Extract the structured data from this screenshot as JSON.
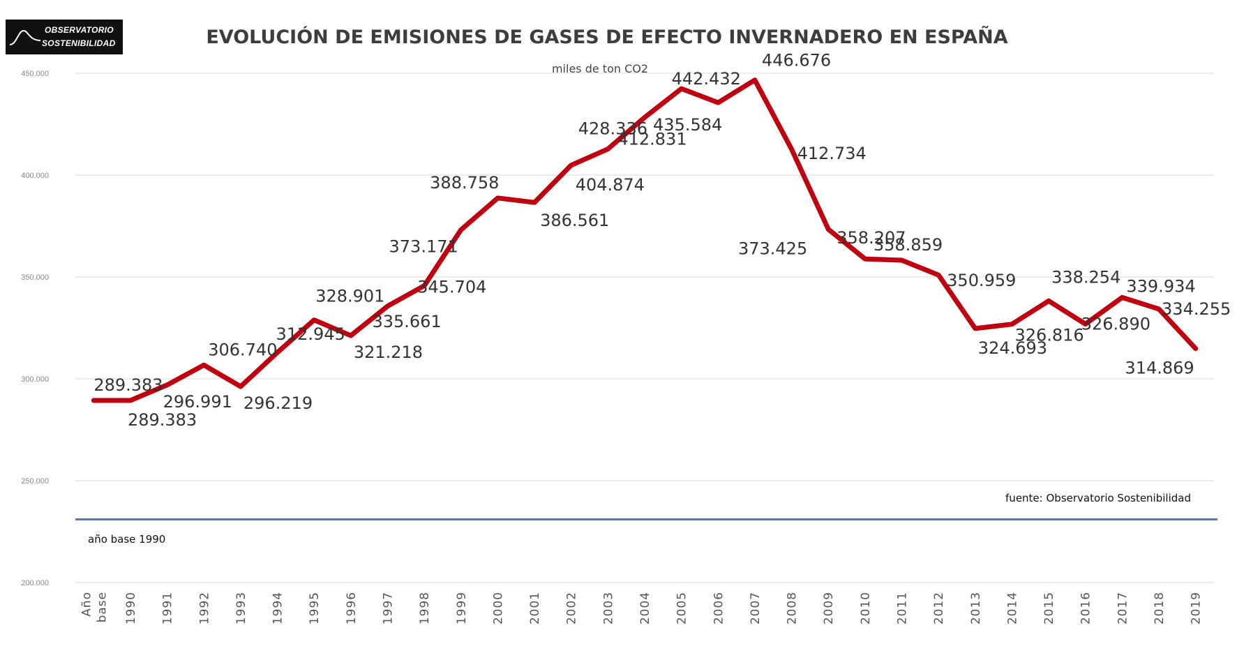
{
  "logo": {
    "line1": "OBSERVATORIO",
    "line2": "SOSTENIBILIDAD"
  },
  "chart_data": {
    "type": "line",
    "title": "EVOLUCIÓN DE EMISIONES DE GASES DE EFECTO INVERNADERO EN ESPAÑA",
    "subtitle": "miles de ton CO2",
    "ylim": [
      200000,
      450000
    ],
    "yticks": [
      200000,
      250000,
      300000,
      350000,
      400000,
      450000
    ],
    "ytick_labels": [
      "200.000",
      "250.000",
      "300.000",
      "350.000",
      "400.000",
      "450.000"
    ],
    "grid": true,
    "categories": [
      "Año base",
      "1990",
      "1991",
      "1992",
      "1993",
      "1994",
      "1995",
      "1996",
      "1997",
      "1998",
      "1999",
      "2000",
      "2001",
      "2002",
      "2003",
      "2004",
      "2005",
      "2006",
      "2007",
      "2008",
      "2009",
      "2010",
      "2011",
      "2012",
      "2013",
      "2014",
      "2015",
      "2016",
      "2017",
      "2018",
      "2019"
    ],
    "series": [
      {
        "color": "#c0000f",
        "values": [
          289383,
          289383,
          296991,
          306740,
          296219,
          312945,
          328901,
          321218,
          335661,
          345704,
          373171,
          388758,
          386561,
          404874,
          412831,
          428336,
          442432,
          435584,
          446676,
          412734,
          373425,
          358859,
          358207,
          350959,
          324693,
          326816,
          338254,
          326890,
          339934,
          334255,
          314869
        ],
        "labels": [
          "289.383",
          "289.383",
          "296.991",
          "306.740",
          "296.219",
          "312.945",
          "328.901",
          "321.218",
          "335.661",
          "345.704",
          "373.171",
          "388.758",
          "386.561",
          "404.874",
          "412.831",
          "428.336",
          "442.432",
          "435.584",
          "446.676",
          "412.734",
          "373.425",
          "358.859",
          "358.207",
          "350.959",
          "324.693",
          "326.816",
          "338.254",
          "326.890",
          "339.934",
          "334.255",
          "314.869"
        ]
      }
    ],
    "reference_line": {
      "value": 231000,
      "color": "#4a7dbf",
      "label": "año base 1990"
    },
    "source": "fuente: Observatorio Sostenibilidad"
  }
}
